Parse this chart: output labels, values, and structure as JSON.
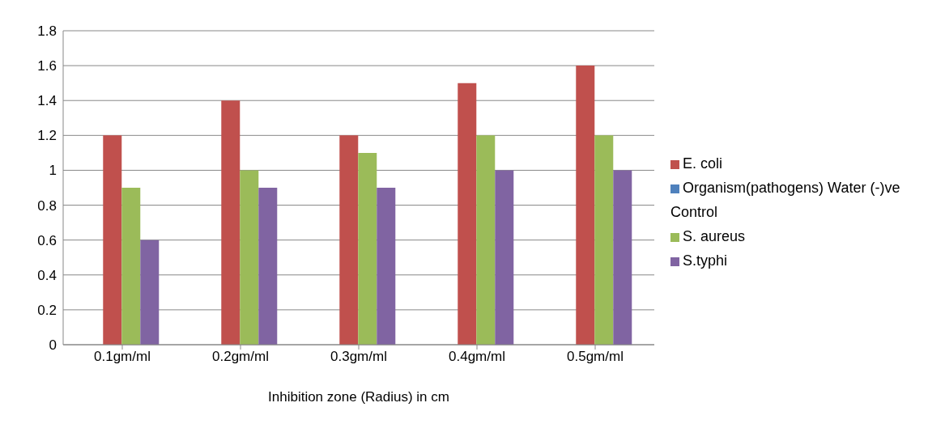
{
  "chart_data": {
    "type": "bar",
    "xlabel": "Inhibition zone (Radius) in cm",
    "categories": [
      "0.1gm/ml",
      "0.2gm/ml",
      "0.3gm/ml",
      "0.4gm/ml",
      "0.5gm/ml"
    ],
    "series": [
      {
        "name": "Organism(pathogens) Water (-)ve Control",
        "color": "#4f81bd",
        "values": [
          0,
          0,
          0,
          0,
          0
        ]
      },
      {
        "name": "E. coli",
        "color": "#c0504d",
        "values": [
          1.2,
          1.4,
          1.2,
          1.5,
          1.6
        ]
      },
      {
        "name": "S. aureus",
        "color": "#9bbb59",
        "values": [
          0.9,
          1.0,
          1.1,
          1.2,
          1.2
        ]
      },
      {
        "name": "S.typhi",
        "color": "#8064a2",
        "values": [
          0.6,
          0.9,
          0.9,
          1.0,
          1.0
        ]
      }
    ],
    "ylim": [
      0,
      1.8
    ],
    "yticks": [
      0,
      0.2,
      0.4,
      0.6,
      0.8,
      1,
      1.2,
      1.4,
      1.6,
      1.8
    ],
    "grid": "y",
    "legend": "right"
  }
}
